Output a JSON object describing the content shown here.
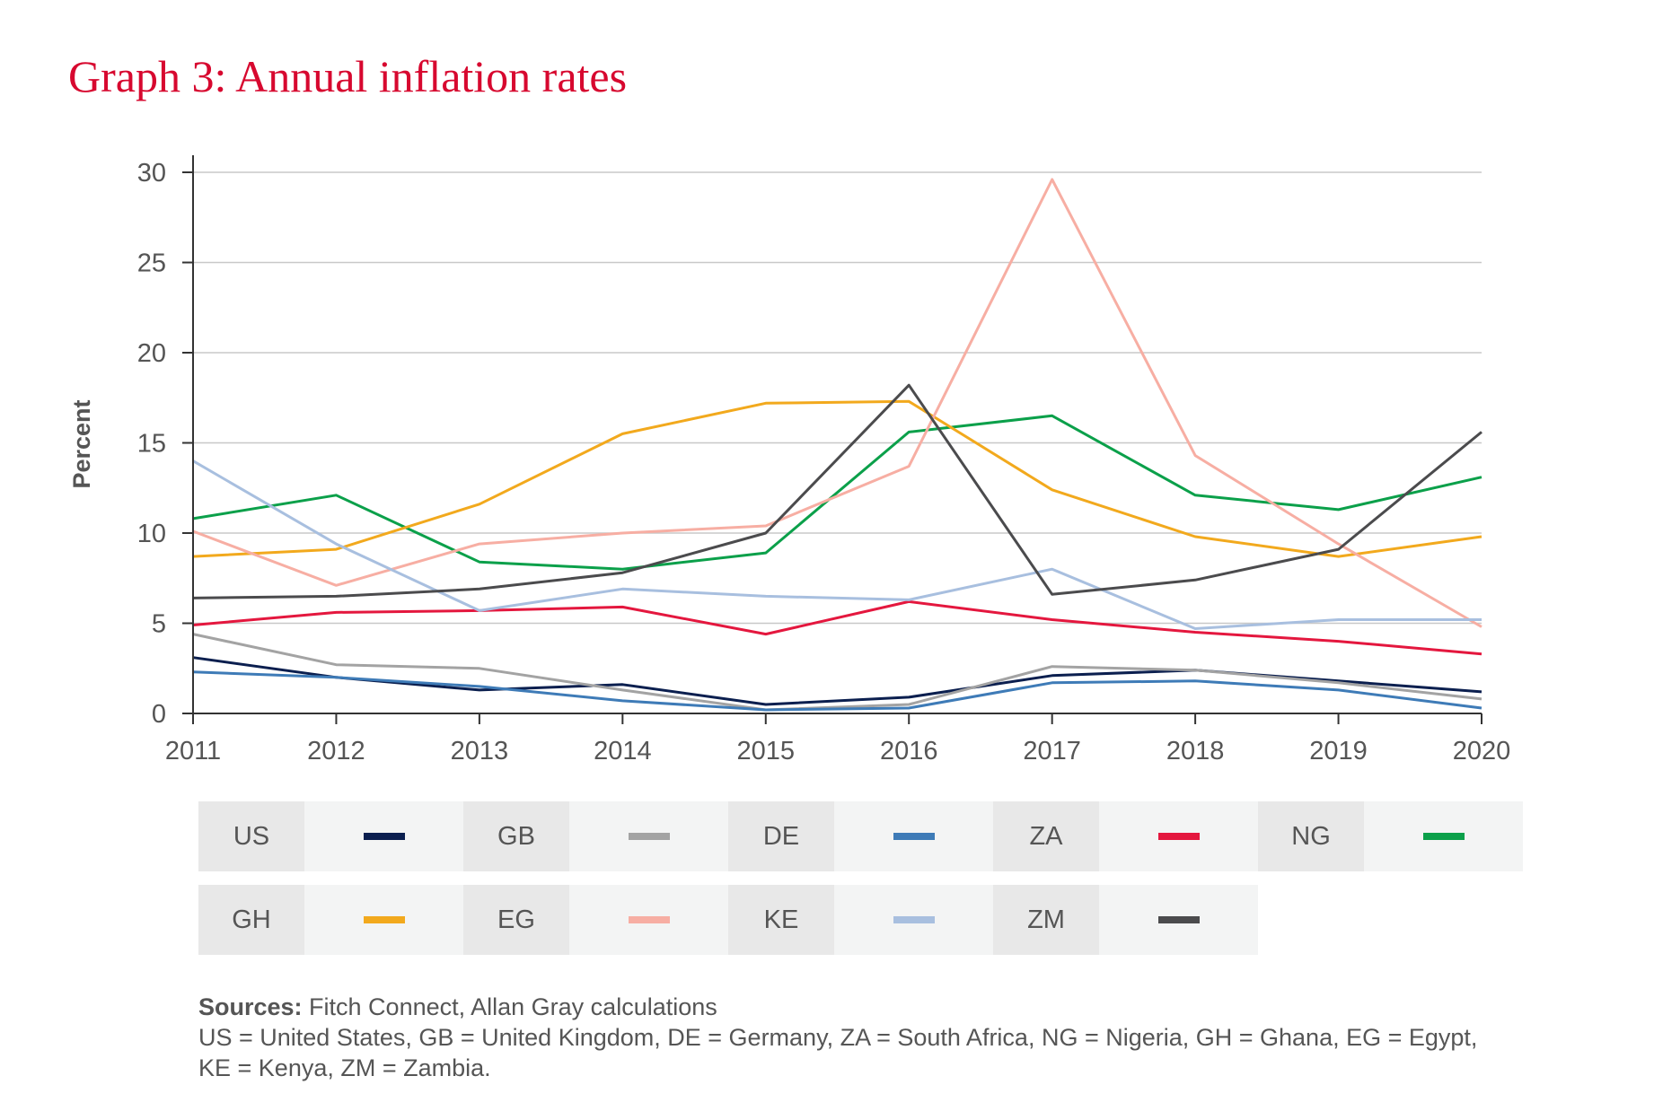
{
  "title": "Graph 3: Annual inflation rates",
  "chart_data": {
    "type": "line",
    "ylabel": "Percent",
    "xlabel": "",
    "ylim": [
      0,
      30
    ],
    "yticks": [
      0,
      5,
      10,
      15,
      20,
      25,
      30
    ],
    "x": [
      2011,
      2012,
      2013,
      2014,
      2015,
      2016,
      2017,
      2018,
      2019,
      2020
    ],
    "grid": true,
    "legend_position": "bottom",
    "series": [
      {
        "name": "US",
        "color": "#0b1f4f",
        "values": [
          3.1,
          2.0,
          1.3,
          1.6,
          0.5,
          0.9,
          2.1,
          2.4,
          1.8,
          1.2
        ]
      },
      {
        "name": "GB",
        "color": "#a3a3a3",
        "values": [
          4.4,
          2.7,
          2.5,
          1.3,
          0.2,
          0.5,
          2.6,
          2.4,
          1.7,
          0.8
        ]
      },
      {
        "name": "DE",
        "color": "#3e7bb7",
        "values": [
          2.3,
          2.0,
          1.5,
          0.7,
          0.2,
          0.3,
          1.7,
          1.8,
          1.3,
          0.3
        ]
      },
      {
        "name": "ZA",
        "color": "#e4173e",
        "values": [
          4.9,
          5.6,
          5.7,
          5.9,
          4.4,
          6.2,
          5.2,
          4.5,
          4.0,
          3.3
        ]
      },
      {
        "name": "NG",
        "color": "#0ba04a",
        "values": [
          10.8,
          12.1,
          8.4,
          8.0,
          8.9,
          15.6,
          16.5,
          12.1,
          11.3,
          13.1
        ]
      },
      {
        "name": "GH",
        "color": "#f2a91d",
        "values": [
          8.7,
          9.1,
          11.6,
          15.5,
          17.2,
          17.3,
          12.4,
          9.8,
          8.7,
          9.8
        ]
      },
      {
        "name": "EG",
        "color": "#f7aea3",
        "values": [
          10.1,
          7.1,
          9.4,
          10.0,
          10.4,
          13.7,
          29.6,
          14.3,
          9.4,
          4.8
        ]
      },
      {
        "name": "KE",
        "color": "#a8bfdf",
        "values": [
          14.0,
          9.4,
          5.7,
          6.9,
          6.5,
          6.3,
          8.0,
          4.7,
          5.2,
          5.2
        ]
      },
      {
        "name": "ZM",
        "color": "#4b4b4d",
        "values": [
          6.4,
          6.5,
          6.9,
          7.8,
          10.0,
          18.2,
          6.6,
          7.4,
          9.1,
          15.6
        ]
      }
    ]
  },
  "legend": {
    "rows": [
      [
        {
          "label": "US",
          "color": "#0b1f4f"
        },
        {
          "label": "GB",
          "color": "#a3a3a3"
        },
        {
          "label": "DE",
          "color": "#3e7bb7"
        },
        {
          "label": "ZA",
          "color": "#e4173e"
        },
        {
          "label": "NG",
          "color": "#0ba04a"
        }
      ],
      [
        {
          "label": "GH",
          "color": "#f2a91d"
        },
        {
          "label": "EG",
          "color": "#f7aea3"
        },
        {
          "label": "KE",
          "color": "#a8bfdf"
        },
        {
          "label": "ZM",
          "color": "#4b4b4d"
        }
      ]
    ]
  },
  "sources": {
    "label": "Sources:",
    "text": " Fitch Connect, Allan Gray calculations",
    "note_line1": "US = United States, GB = United Kingdom, DE = Germany, ZA = South Africa, NG = Nigeria, GH = Ghana, EG = Egypt,",
    "note_line2": "KE = Kenya, ZM = Zambia."
  }
}
